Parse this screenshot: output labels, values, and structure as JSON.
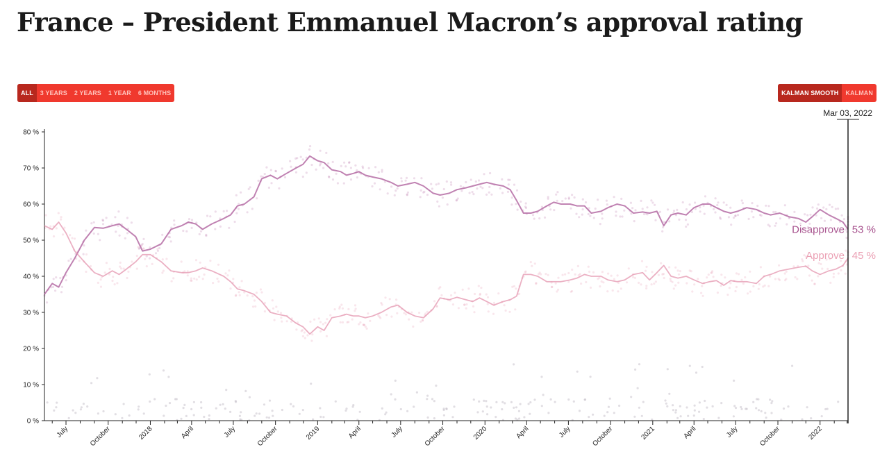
{
  "page": {
    "title": "France – President Emmanuel Macron’s approval rating"
  },
  "range_buttons": [
    {
      "label": "ALL",
      "active": true
    },
    {
      "label": "3 YEARS",
      "active": false
    },
    {
      "label": "2 YEARS",
      "active": false
    },
    {
      "label": "1 YEAR",
      "active": false
    },
    {
      "label": "6 MONTHS",
      "active": false
    }
  ],
  "smoothing_buttons": [
    {
      "label": "KALMAN SMOOTH",
      "active": true
    },
    {
      "label": "KALMAN",
      "active": false
    }
  ],
  "colors": {
    "disapprove": "#b0639f",
    "approve": "#e28ea9",
    "disapprove_label": "#a8548f",
    "approve_label": "#eba0b4",
    "points": "#c8c3cc"
  },
  "chart_data": {
    "type": "line",
    "date_marker": "Mar 03, 2022",
    "x_range": [
      "2017-05-15",
      "2022-03-03"
    ],
    "ylim": [
      0,
      80
    ],
    "y_ticks": [
      "0 %",
      "10 %",
      "20 %",
      "30 %",
      "40 %",
      "50 %",
      "60 %",
      "70 %",
      "80 %"
    ],
    "x_ticks": [
      {
        "date": "2017-07-01",
        "label": "July"
      },
      {
        "date": "2017-10-01",
        "label": "October"
      },
      {
        "date": "2018-01-01",
        "label": "2018"
      },
      {
        "date": "2018-04-01",
        "label": "April"
      },
      {
        "date": "2018-07-01",
        "label": "July"
      },
      {
        "date": "2018-10-01",
        "label": "October"
      },
      {
        "date": "2019-01-01",
        "label": "2019"
      },
      {
        "date": "2019-04-01",
        "label": "April"
      },
      {
        "date": "2019-07-01",
        "label": "July"
      },
      {
        "date": "2019-10-01",
        "label": "October"
      },
      {
        "date": "2020-01-01",
        "label": "2020"
      },
      {
        "date": "2020-04-01",
        "label": "April"
      },
      {
        "date": "2020-07-01",
        "label": "July"
      },
      {
        "date": "2020-10-01",
        "label": "October"
      },
      {
        "date": "2021-01-01",
        "label": "2021"
      },
      {
        "date": "2021-04-01",
        "label": "April"
      },
      {
        "date": "2021-07-01",
        "label": "July"
      },
      {
        "date": "2021-10-01",
        "label": "October"
      },
      {
        "date": "2022-01-01",
        "label": "2022"
      }
    ],
    "series": [
      {
        "name": "Disapprove",
        "end_label": "Disapprove",
        "end_value": "53 %",
        "points": [
          [
            "2017-05-15",
            35
          ],
          [
            "2017-06-01",
            38
          ],
          [
            "2017-06-15",
            37
          ],
          [
            "2017-07-01",
            41
          ],
          [
            "2017-07-20",
            45
          ],
          [
            "2017-08-10",
            50
          ],
          [
            "2017-09-01",
            53.5
          ],
          [
            "2017-09-20",
            53.3
          ],
          [
            "2017-10-10",
            54
          ],
          [
            "2017-10-25",
            54.5
          ],
          [
            "2017-11-10",
            53
          ],
          [
            "2017-11-30",
            51
          ],
          [
            "2017-12-15",
            47
          ],
          [
            "2018-01-01",
            47.5
          ],
          [
            "2018-01-25",
            49
          ],
          [
            "2018-02-15",
            53
          ],
          [
            "2018-03-10",
            54
          ],
          [
            "2018-03-25",
            55
          ],
          [
            "2018-04-10",
            54.5
          ],
          [
            "2018-04-25",
            53
          ],
          [
            "2018-05-15",
            54.5
          ],
          [
            "2018-06-10",
            56
          ],
          [
            "2018-06-25",
            57
          ],
          [
            "2018-07-10",
            59.5
          ],
          [
            "2018-07-25",
            60
          ],
          [
            "2018-08-15",
            62
          ],
          [
            "2018-09-01",
            67
          ],
          [
            "2018-09-20",
            68
          ],
          [
            "2018-10-05",
            67
          ],
          [
            "2018-10-25",
            68.5
          ],
          [
            "2018-11-15",
            70
          ],
          [
            "2018-11-30",
            71
          ],
          [
            "2018-12-15",
            73.3
          ],
          [
            "2019-01-01",
            72
          ],
          [
            "2019-01-15",
            71.5
          ],
          [
            "2019-02-01",
            69.5
          ],
          [
            "2019-02-20",
            69
          ],
          [
            "2019-03-05",
            68
          ],
          [
            "2019-03-20",
            68.5
          ],
          [
            "2019-04-01",
            69
          ],
          [
            "2019-04-15",
            68
          ],
          [
            "2019-05-01",
            67.5
          ],
          [
            "2019-05-20",
            67
          ],
          [
            "2019-06-10",
            66
          ],
          [
            "2019-06-25",
            65
          ],
          [
            "2019-07-15",
            65.5
          ],
          [
            "2019-08-01",
            66
          ],
          [
            "2019-08-20",
            65
          ],
          [
            "2019-09-10",
            63
          ],
          [
            "2019-09-25",
            62.5
          ],
          [
            "2019-10-15",
            63
          ],
          [
            "2019-11-01",
            64
          ],
          [
            "2019-11-20",
            64.5
          ],
          [
            "2019-12-05",
            65
          ],
          [
            "2019-12-20",
            65.5
          ],
          [
            "2020-01-05",
            66
          ],
          [
            "2020-01-20",
            65.5
          ],
          [
            "2020-02-10",
            65
          ],
          [
            "2020-02-25",
            64
          ],
          [
            "2020-03-10",
            61
          ],
          [
            "2020-03-25",
            57.5
          ],
          [
            "2020-04-10",
            57.5
          ],
          [
            "2020-04-25",
            58
          ],
          [
            "2020-05-15",
            59.5
          ],
          [
            "2020-05-30",
            60.5
          ],
          [
            "2020-06-15",
            60
          ],
          [
            "2020-07-05",
            60
          ],
          [
            "2020-07-20",
            59.5
          ],
          [
            "2020-08-05",
            59.5
          ],
          [
            "2020-08-20",
            57.5
          ],
          [
            "2020-09-10",
            58
          ],
          [
            "2020-09-25",
            59
          ],
          [
            "2020-10-15",
            60
          ],
          [
            "2020-11-01",
            59.5
          ],
          [
            "2020-11-20",
            57.5
          ],
          [
            "2020-12-10",
            57.8
          ],
          [
            "2020-12-25",
            57.5
          ],
          [
            "2021-01-10",
            58
          ],
          [
            "2021-01-25",
            54
          ],
          [
            "2021-02-10",
            57
          ],
          [
            "2021-02-25",
            57.5
          ],
          [
            "2021-03-15",
            57
          ],
          [
            "2021-04-01",
            59
          ],
          [
            "2021-04-20",
            60
          ],
          [
            "2021-05-05",
            60
          ],
          [
            "2021-05-20",
            59
          ],
          [
            "2021-06-05",
            58
          ],
          [
            "2021-06-20",
            57.5
          ],
          [
            "2021-07-05",
            58
          ],
          [
            "2021-07-25",
            59
          ],
          [
            "2021-08-15",
            58.5
          ],
          [
            "2021-09-01",
            57.5
          ],
          [
            "2021-09-15",
            57
          ],
          [
            "2021-10-05",
            57.5
          ],
          [
            "2021-10-25",
            56.5
          ],
          [
            "2021-11-15",
            56
          ],
          [
            "2021-12-01",
            55
          ],
          [
            "2021-12-15",
            56.5
          ],
          [
            "2022-01-01",
            58.5
          ],
          [
            "2022-01-20",
            57
          ],
          [
            "2022-02-05",
            56
          ],
          [
            "2022-02-20",
            55
          ],
          [
            "2022-03-03",
            53
          ]
        ]
      },
      {
        "name": "Approve",
        "end_label": "Approve",
        "end_value": "45 %",
        "points": [
          [
            "2017-05-15",
            54
          ],
          [
            "2017-06-01",
            53
          ],
          [
            "2017-06-15",
            55
          ],
          [
            "2017-07-01",
            52
          ],
          [
            "2017-07-20",
            47
          ],
          [
            "2017-08-10",
            44
          ],
          [
            "2017-09-01",
            41
          ],
          [
            "2017-09-20",
            40
          ],
          [
            "2017-10-10",
            41.5
          ],
          [
            "2017-10-25",
            40.5
          ],
          [
            "2017-11-10",
            42
          ],
          [
            "2017-11-30",
            44
          ],
          [
            "2017-12-15",
            46
          ],
          [
            "2018-01-01",
            46
          ],
          [
            "2018-01-25",
            44
          ],
          [
            "2018-02-15",
            41.5
          ],
          [
            "2018-03-10",
            41
          ],
          [
            "2018-03-25",
            41
          ],
          [
            "2018-04-10",
            41.5
          ],
          [
            "2018-04-25",
            42.3
          ],
          [
            "2018-05-15",
            41.5
          ],
          [
            "2018-06-10",
            40
          ],
          [
            "2018-06-25",
            38.5
          ],
          [
            "2018-07-10",
            36.5
          ],
          [
            "2018-07-25",
            36
          ],
          [
            "2018-08-15",
            35
          ],
          [
            "2018-09-01",
            33
          ],
          [
            "2018-09-20",
            30
          ],
          [
            "2018-10-05",
            29.5
          ],
          [
            "2018-10-25",
            29
          ],
          [
            "2018-11-15",
            27
          ],
          [
            "2018-11-30",
            26
          ],
          [
            "2018-12-15",
            24
          ],
          [
            "2019-01-01",
            26
          ],
          [
            "2019-01-15",
            25
          ],
          [
            "2019-02-01",
            28.5
          ],
          [
            "2019-02-20",
            29
          ],
          [
            "2019-03-05",
            29.5
          ],
          [
            "2019-03-20",
            29
          ],
          [
            "2019-04-01",
            29
          ],
          [
            "2019-04-15",
            28.5
          ],
          [
            "2019-05-01",
            29
          ],
          [
            "2019-05-20",
            30
          ],
          [
            "2019-06-10",
            31.5
          ],
          [
            "2019-06-25",
            32
          ],
          [
            "2019-07-15",
            30
          ],
          [
            "2019-08-01",
            29
          ],
          [
            "2019-08-20",
            28.5
          ],
          [
            "2019-09-10",
            31
          ],
          [
            "2019-09-25",
            34
          ],
          [
            "2019-10-15",
            33.5
          ],
          [
            "2019-11-01",
            34.2
          ],
          [
            "2019-11-20",
            33.5
          ],
          [
            "2019-12-05",
            33
          ],
          [
            "2019-12-20",
            34
          ],
          [
            "2020-01-05",
            33
          ],
          [
            "2020-01-20",
            32
          ],
          [
            "2020-02-10",
            33
          ],
          [
            "2020-02-25",
            33.5
          ],
          [
            "2020-03-10",
            34.5
          ],
          [
            "2020-03-25",
            40.5
          ],
          [
            "2020-04-10",
            40.5
          ],
          [
            "2020-04-25",
            40
          ],
          [
            "2020-05-15",
            38.5
          ],
          [
            "2020-05-30",
            38.5
          ],
          [
            "2020-06-15",
            38.5
          ],
          [
            "2020-07-05",
            39
          ],
          [
            "2020-07-20",
            39.5
          ],
          [
            "2020-08-05",
            40.5
          ],
          [
            "2020-08-20",
            40
          ],
          [
            "2020-09-10",
            40
          ],
          [
            "2020-09-25",
            39
          ],
          [
            "2020-10-15",
            38.5
          ],
          [
            "2020-11-01",
            39
          ],
          [
            "2020-11-20",
            40.5
          ],
          [
            "2020-12-10",
            41
          ],
          [
            "2020-12-25",
            39
          ],
          [
            "2021-01-10",
            41
          ],
          [
            "2021-01-25",
            43
          ],
          [
            "2021-02-10",
            40
          ],
          [
            "2021-02-25",
            39.5
          ],
          [
            "2021-03-15",
            40
          ],
          [
            "2021-04-01",
            39
          ],
          [
            "2021-04-20",
            38
          ],
          [
            "2021-05-05",
            38.5
          ],
          [
            "2021-05-20",
            38.8
          ],
          [
            "2021-06-05",
            37.5
          ],
          [
            "2021-06-20",
            38.8
          ],
          [
            "2021-07-05",
            38.5
          ],
          [
            "2021-07-25",
            38.5
          ],
          [
            "2021-08-15",
            38
          ],
          [
            "2021-09-01",
            40
          ],
          [
            "2021-09-15",
            40.5
          ],
          [
            "2021-10-05",
            41.5
          ],
          [
            "2021-10-25",
            42
          ],
          [
            "2021-11-15",
            42.5
          ],
          [
            "2021-12-01",
            42.8
          ],
          [
            "2021-12-15",
            41.5
          ],
          [
            "2022-01-01",
            40.5
          ],
          [
            "2022-01-20",
            41.5
          ],
          [
            "2022-02-05",
            42
          ],
          [
            "2022-02-20",
            43
          ],
          [
            "2022-03-03",
            45
          ]
        ]
      }
    ]
  }
}
